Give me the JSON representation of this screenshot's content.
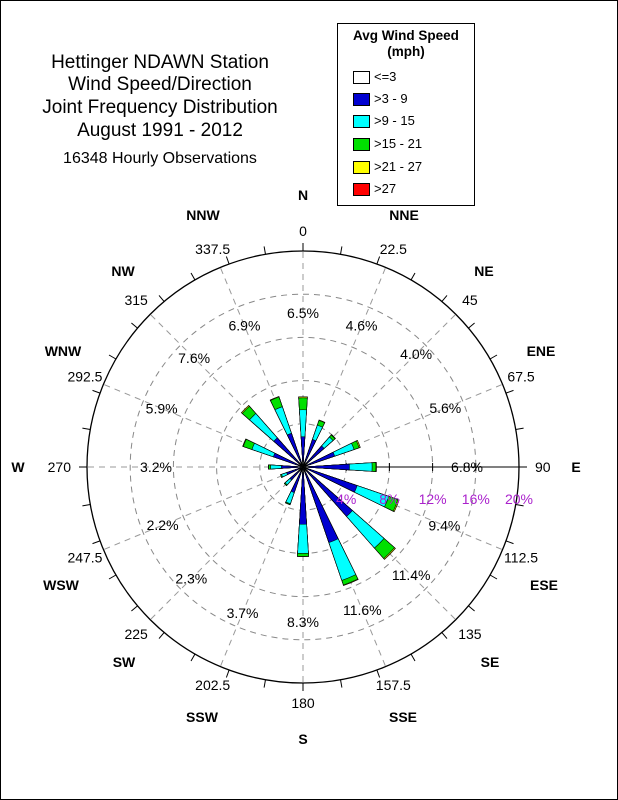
{
  "title_lines": [
    "Hettinger NDAWN Station",
    "Wind Speed/Direction",
    "Joint Frequency Distribution",
    "August 1991 - 2012"
  ],
  "subtitle": "16348 Hourly Observations",
  "legend": {
    "title": "Avg Wind Speed (mph)",
    "title_line1": "Avg Wind Speed",
    "title_line2": "(mph)",
    "items": [
      {
        "label": "<=3",
        "color": "#ffffff"
      },
      {
        "label": ">3 - 9",
        "color": "#0000d0"
      },
      {
        "label": ">9 - 15",
        "color": "#00ffff"
      },
      {
        "label": ">15 - 21",
        "color": "#00e000"
      },
      {
        "label": ">21 - 27",
        "color": "#ffff00"
      },
      {
        "label": ">27",
        "color": "#ff0000"
      }
    ]
  },
  "chart_data": {
    "type": "wind-rose",
    "title": "Hettinger NDAWN Station Wind Speed/Direction Joint Frequency Distribution August 1991 - 2012",
    "subtitle": "16348 Hourly Observations",
    "radial_unit": "%",
    "radial_max": 20,
    "radial_ticks": [
      "4%",
      "8%",
      "12%",
      "16%",
      "20%"
    ],
    "radial_tick_values": [
      4,
      8,
      12,
      16,
      20
    ],
    "direction_labels": [
      "N",
      "NNE",
      "NE",
      "ENE",
      "E",
      "ESE",
      "SE",
      "SSE",
      "S",
      "SSW",
      "SW",
      "WSW",
      "W",
      "WNW",
      "NW",
      "NNW"
    ],
    "direction_degrees": [
      "0",
      "22.5",
      "45",
      "67.5",
      "90",
      "112.5",
      "135",
      "157.5",
      "180",
      "202.5",
      "225",
      "247.5",
      "270",
      "292.5",
      "315",
      "337.5"
    ],
    "direction_angles": [
      0,
      22.5,
      45,
      67.5,
      90,
      112.5,
      135,
      157.5,
      180,
      202.5,
      225,
      247.5,
      270,
      292.5,
      315,
      337.5
    ],
    "direction_percents": [
      "6.5%",
      "4.6%",
      "4.0%",
      "5.6%",
      "6.8%",
      "9.4%",
      "11.4%",
      "11.6%",
      "8.3%",
      "3.7%",
      "2.3%",
      "2.2%",
      "3.2%",
      "5.9%",
      "7.6%",
      "6.9%"
    ],
    "series_names": [
      "<=3",
      ">3 - 9",
      ">9 - 15",
      ">15 - 21",
      ">21 - 27",
      ">27"
    ],
    "cumulative_by_direction": [
      [
        0.3,
        2.8,
        5.3,
        6.4,
        6.5,
        6.5
      ],
      [
        0.3,
        2.7,
        4.1,
        4.55,
        4.6,
        4.6
      ],
      [
        0.3,
        2.6,
        3.7,
        3.95,
        4.0,
        4.0
      ],
      [
        0.3,
        3.1,
        5.0,
        5.5,
        5.6,
        5.6
      ],
      [
        0.3,
        4.3,
        6.4,
        6.75,
        6.8,
        6.8
      ],
      [
        0.3,
        5.3,
        8.4,
        9.3,
        9.4,
        9.4
      ],
      [
        0.3,
        6.1,
        10.0,
        11.3,
        11.4,
        11.4
      ],
      [
        0.3,
        7.4,
        11.1,
        11.55,
        11.6,
        11.6
      ],
      [
        0.3,
        5.3,
        8.0,
        8.28,
        8.3,
        8.3
      ],
      [
        0.3,
        2.5,
        3.6,
        3.68,
        3.7,
        3.7
      ],
      [
        0.3,
        1.6,
        2.2,
        2.3,
        2.3,
        2.3
      ],
      [
        0.3,
        1.6,
        2.1,
        2.2,
        2.2,
        2.2
      ],
      [
        0.3,
        2.0,
        3.0,
        3.18,
        3.2,
        3.2
      ],
      [
        0.3,
        2.9,
        5.0,
        5.85,
        5.9,
        5.9
      ],
      [
        0.3,
        3.6,
        6.6,
        7.5,
        7.6,
        7.6
      ],
      [
        0.3,
        3.3,
        5.9,
        6.85,
        6.9,
        6.9
      ]
    ]
  }
}
